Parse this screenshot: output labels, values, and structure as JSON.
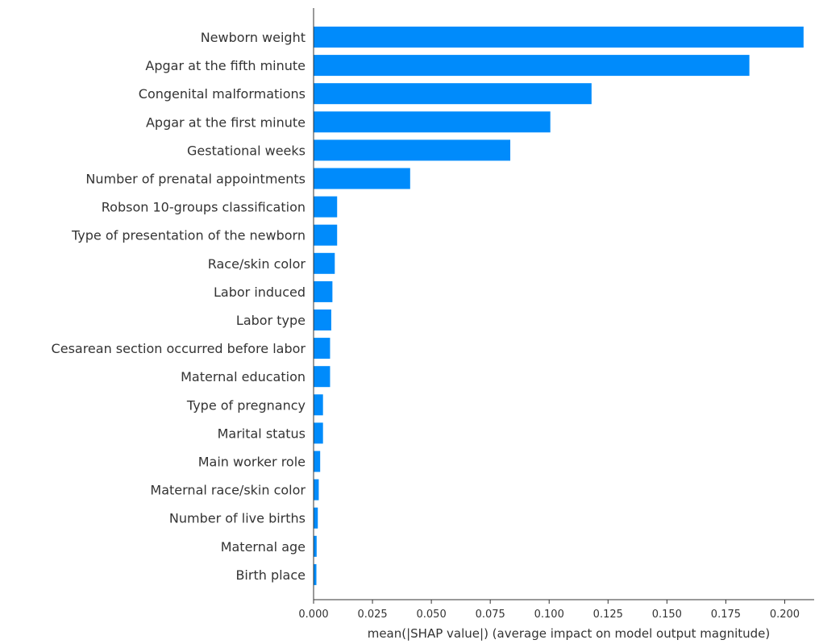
{
  "chart_data": {
    "type": "bar",
    "orientation": "horizontal",
    "title": "",
    "xlabel": "mean(|SHAP value|) (average impact on model output magnitude)",
    "ylabel": "",
    "xlim": [
      0.0,
      0.2125
    ],
    "xticks": [
      0.0,
      0.025,
      0.05,
      0.075,
      0.1,
      0.125,
      0.15,
      0.175,
      0.2
    ],
    "xtick_labels": [
      "0.000",
      "0.025",
      "0.050",
      "0.075",
      "0.100",
      "0.125",
      "0.150",
      "0.175",
      "0.200"
    ],
    "grid": false,
    "bar_color": "#008bfb",
    "categories": [
      "Newborn weight",
      "Apgar at the fifth minute",
      "Congenital malformations",
      "Apgar at the first minute",
      "Gestational weeks",
      "Number of prenatal appointments",
      "Robson 10-groups classification",
      "Type of presentation of the newborn",
      "Race/skin color",
      "Labor induced",
      "Labor type",
      "Cesarean section occurred before labor",
      "Maternal education",
      "Type of pregnancy",
      "Marital status",
      "Main worker role",
      "Maternal race/skin color",
      "Number of live births",
      "Maternal age",
      "Birth place"
    ],
    "values": [
      0.208,
      0.185,
      0.118,
      0.1005,
      0.0835,
      0.041,
      0.01,
      0.01,
      0.009,
      0.008,
      0.0075,
      0.007,
      0.007,
      0.004,
      0.004,
      0.0028,
      0.0022,
      0.0018,
      0.0013,
      0.0012
    ]
  }
}
